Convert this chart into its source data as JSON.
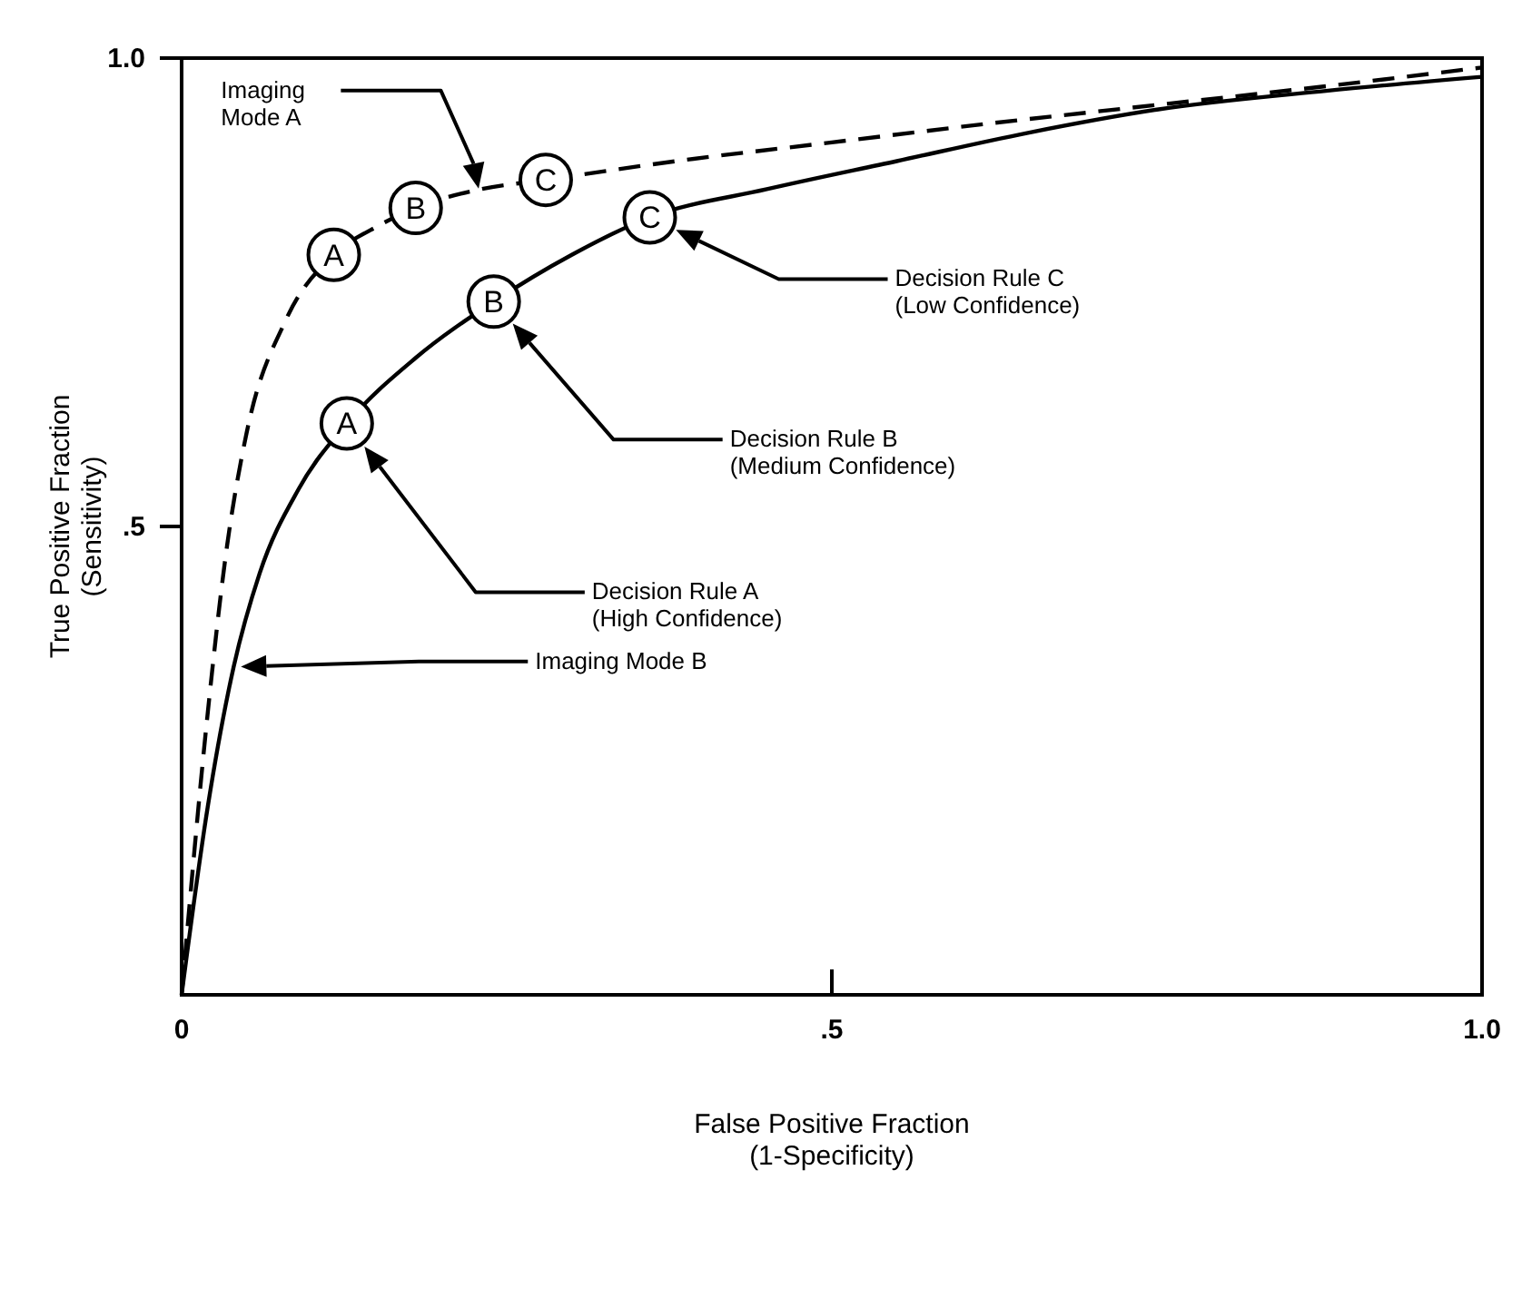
{
  "chart_data": {
    "type": "line",
    "xlabel": "False Positive Fraction\n(1-Specificity)",
    "ylabel": "True Positive Fraction\n(Sensitivity)",
    "xlim": [
      0,
      1
    ],
    "ylim": [
      0,
      1
    ],
    "xticks": [
      {
        "value": 0,
        "label": "0"
      },
      {
        "value": 0.5,
        "label": ".5"
      },
      {
        "value": 1,
        "label": "1.0"
      }
    ],
    "yticks": [
      {
        "value": 0.5,
        "label": ".5"
      },
      {
        "value": 1,
        "label": "1.0"
      }
    ],
    "grid": false,
    "marker": "none",
    "series": [
      {
        "color": "#000000",
        "line_style": "dashed",
        "x": [
          0,
          0.02,
          0.035,
          0.05,
          0.08,
          0.117,
          0.15,
          0.18,
          0.23,
          0.28,
          0.38,
          0.5,
          0.62,
          0.75,
          0.88,
          1
        ],
        "values": [
          0,
          0.3,
          0.48,
          0.6,
          0.72,
          0.79,
          0.82,
          0.84,
          0.86,
          0.87,
          0.89,
          0.91,
          0.93,
          0.95,
          0.97,
          0.99
        ]
      },
      {
        "color": "#000000",
        "line_style": "solid",
        "x": [
          0,
          0.02,
          0.04,
          0.06,
          0.09,
          0.127,
          0.18,
          0.24,
          0.3,
          0.36,
          0.45,
          0.55,
          0.65,
          0.75,
          0.88,
          1
        ],
        "values": [
          0,
          0.2,
          0.35,
          0.45,
          0.54,
          0.61,
          0.68,
          0.74,
          0.79,
          0.83,
          0.86,
          0.89,
          0.92,
          0.945,
          0.965,
          0.98
        ]
      }
    ],
    "annotations": [
      {
        "text": "A",
        "x": 0.117,
        "y": 0.79
      },
      {
        "text": "B",
        "x": 0.18,
        "y": 0.84
      },
      {
        "text": "C",
        "x": 0.28,
        "y": 0.87
      },
      {
        "text": "A",
        "x": 0.127,
        "y": 0.61
      },
      {
        "text": "B",
        "x": 0.24,
        "y": 0.74
      },
      {
        "text": "C",
        "x": 0.36,
        "y": 0.83
      },
      "Decision Rule A\n(High Confidence)",
      "Decision Rule B\n(Medium Confidence)",
      "Decision Rule C\n(Low Confidence)",
      "Imaging\nMode A",
      "Imaging Mode B"
    ]
  }
}
